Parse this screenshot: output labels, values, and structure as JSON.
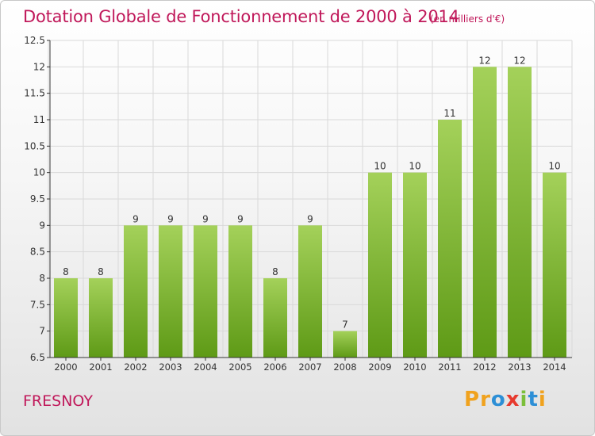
{
  "header": {
    "title": "Dotation Globale de Fonctionnement de 2000 à 2014",
    "subtitle": "(en milliers d'€)"
  },
  "footer": {
    "commune": "FRESNOY",
    "logo_letters": [
      "P",
      "r",
      "o",
      "x",
      "i",
      "t",
      "i"
    ]
  },
  "colors": {
    "title": "#c0185a",
    "bar_top": "#a4d15a",
    "bar_bottom": "#5e9a16",
    "grid": "#d9d9d9",
    "axis": "#333333",
    "logo": [
      "#f0a21e",
      "#f0a21e",
      "#2d8fd6",
      "#e73a2e",
      "#7bbf3a",
      "#2d8fd6",
      "#f0a21e"
    ]
  },
  "chart_data": {
    "type": "bar",
    "categories": [
      "2000",
      "2001",
      "2002",
      "2003",
      "2004",
      "2005",
      "2006",
      "2007",
      "2008",
      "2009",
      "2010",
      "2011",
      "2012",
      "2013",
      "2014"
    ],
    "values": [
      8,
      8,
      9,
      9,
      9,
      9,
      8,
      9,
      7,
      10,
      10,
      11,
      12,
      12,
      10
    ],
    "data_labels": [
      "8",
      "8",
      "9",
      "9",
      "9",
      "9",
      "8",
      "9",
      "7",
      "10",
      "10",
      "11",
      "12",
      "12",
      "10"
    ],
    "ylim": [
      6.5,
      12.5
    ],
    "yticks": [
      6.5,
      7,
      7.5,
      8,
      8.5,
      9,
      9.5,
      10,
      10.5,
      11,
      11.5,
      12,
      12.5
    ],
    "ytick_labels": [
      "6.5",
      "7",
      "7.5",
      "8",
      "8.5",
      "9",
      "9.5",
      "10",
      "10.5",
      "11",
      "11.5",
      "12",
      "12.5"
    ],
    "grid": true,
    "legend": "none"
  }
}
